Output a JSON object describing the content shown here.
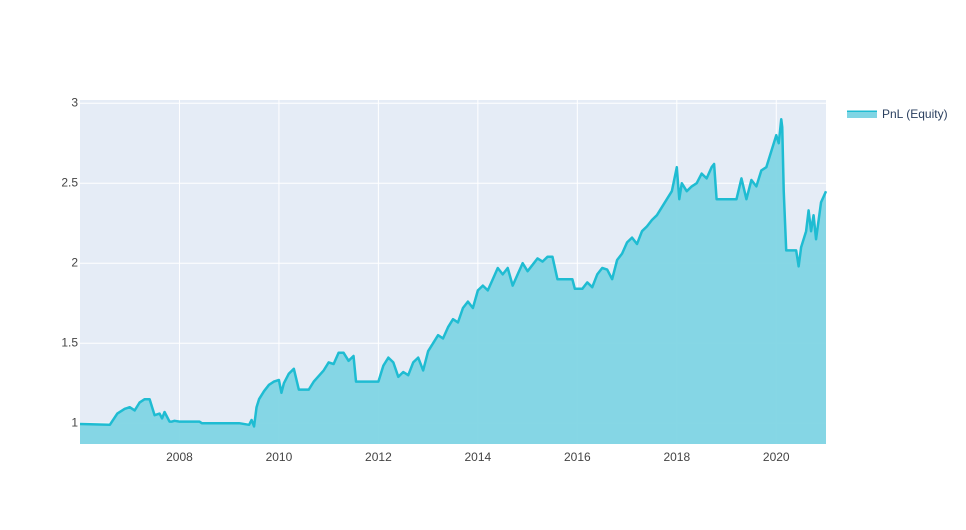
{
  "colors": {
    "plot_bg": "#e5ecf6",
    "grid": "#ffffff",
    "line": "#1fbcd2",
    "fill": "#7fd5e4"
  },
  "chart_data": {
    "type": "area",
    "title": "",
    "xlabel": "",
    "ylabel": "",
    "xlim": [
      2006.0,
      2021.0
    ],
    "ylim": [
      0.87,
      3.02
    ],
    "grid": true,
    "legend": "top-right",
    "x_ticks": [
      2008,
      2010,
      2012,
      2014,
      2016,
      2018,
      2020
    ],
    "x_tick_labels": [
      "2008",
      "2010",
      "2012",
      "2014",
      "2016",
      "2018",
      "2020"
    ],
    "y_ticks": [
      1,
      1.5,
      2,
      2.5,
      3
    ],
    "y_tick_labels": [
      "1",
      "1.5",
      "2",
      "2.5",
      "3"
    ],
    "series": [
      {
        "name": "PnL (Equity)",
        "x": [
          2006.0,
          2006.6,
          2006.75,
          2006.9,
          2007.0,
          2007.1,
          2007.2,
          2007.3,
          2007.4,
          2007.5,
          2007.6,
          2007.65,
          2007.7,
          2007.8,
          2007.85,
          2007.9,
          2008.0,
          2008.2,
          2008.4,
          2008.45,
          2009.2,
          2009.4,
          2009.45,
          2009.5,
          2009.55,
          2009.6,
          2009.7,
          2009.8,
          2009.9,
          2010.0,
          2010.05,
          2010.1,
          2010.2,
          2010.3,
          2010.4,
          2010.5,
          2010.6,
          2010.7,
          2010.9,
          2011.0,
          2011.1,
          2011.2,
          2011.3,
          2011.4,
          2011.5,
          2011.55,
          2011.6,
          2011.8,
          2012.0,
          2012.1,
          2012.2,
          2012.3,
          2012.4,
          2012.5,
          2012.6,
          2012.7,
          2012.8,
          2012.9,
          2013.0,
          2013.1,
          2013.2,
          2013.3,
          2013.4,
          2013.5,
          2013.6,
          2013.7,
          2013.8,
          2013.9,
          2014.0,
          2014.1,
          2014.2,
          2014.3,
          2014.4,
          2014.5,
          2014.6,
          2014.7,
          2014.8,
          2014.9,
          2015.0,
          2015.1,
          2015.2,
          2015.3,
          2015.4,
          2015.5,
          2015.6,
          2015.7,
          2015.9,
          2015.95,
          2016.0,
          2016.1,
          2016.2,
          2016.3,
          2016.4,
          2016.5,
          2016.6,
          2016.7,
          2016.8,
          2016.9,
          2017.0,
          2017.1,
          2017.2,
          2017.3,
          2017.4,
          2017.5,
          2017.6,
          2017.7,
          2017.8,
          2017.9,
          2018.0,
          2018.05,
          2018.1,
          2018.2,
          2018.3,
          2018.4,
          2018.5,
          2018.6,
          2018.7,
          2018.75,
          2018.8,
          2019.0,
          2019.2,
          2019.3,
          2019.4,
          2019.5,
          2019.6,
          2019.7,
          2019.8,
          2019.9,
          2020.0,
          2020.05,
          2020.1,
          2020.12,
          2020.15,
          2020.2,
          2020.4,
          2020.45,
          2020.5,
          2020.6,
          2020.65,
          2020.7,
          2020.75,
          2020.8,
          2020.9,
          2021.0
        ],
        "y": [
          0.995,
          0.99,
          1.06,
          1.09,
          1.1,
          1.08,
          1.13,
          1.15,
          1.15,
          1.05,
          1.06,
          1.03,
          1.07,
          1.01,
          1.01,
          1.015,
          1.01,
          1.01,
          1.01,
          1.0,
          1.0,
          0.99,
          1.02,
          0.98,
          1.1,
          1.15,
          1.2,
          1.24,
          1.26,
          1.27,
          1.19,
          1.25,
          1.31,
          1.34,
          1.21,
          1.21,
          1.21,
          1.26,
          1.33,
          1.38,
          1.37,
          1.44,
          1.44,
          1.39,
          1.42,
          1.26,
          1.26,
          1.26,
          1.26,
          1.36,
          1.41,
          1.38,
          1.29,
          1.32,
          1.3,
          1.38,
          1.41,
          1.33,
          1.45,
          1.5,
          1.55,
          1.53,
          1.6,
          1.65,
          1.63,
          1.72,
          1.76,
          1.72,
          1.83,
          1.86,
          1.83,
          1.9,
          1.97,
          1.93,
          1.97,
          1.86,
          1.93,
          2.0,
          1.95,
          1.99,
          2.03,
          2.01,
          2.04,
          2.04,
          1.9,
          1.9,
          1.9,
          1.84,
          1.84,
          1.84,
          1.88,
          1.85,
          1.93,
          1.97,
          1.96,
          1.9,
          2.02,
          2.06,
          2.13,
          2.16,
          2.12,
          2.2,
          2.23,
          2.27,
          2.3,
          2.35,
          2.4,
          2.45,
          2.6,
          2.4,
          2.5,
          2.45,
          2.48,
          2.5,
          2.56,
          2.53,
          2.6,
          2.62,
          2.4,
          2.4,
          2.4,
          2.53,
          2.4,
          2.52,
          2.48,
          2.58,
          2.6,
          2.7,
          2.8,
          2.75,
          2.9,
          2.85,
          2.45,
          2.08,
          2.08,
          1.98,
          2.1,
          2.2,
          2.33,
          2.2,
          2.3,
          2.15,
          2.38,
          2.45
        ]
      }
    ]
  }
}
